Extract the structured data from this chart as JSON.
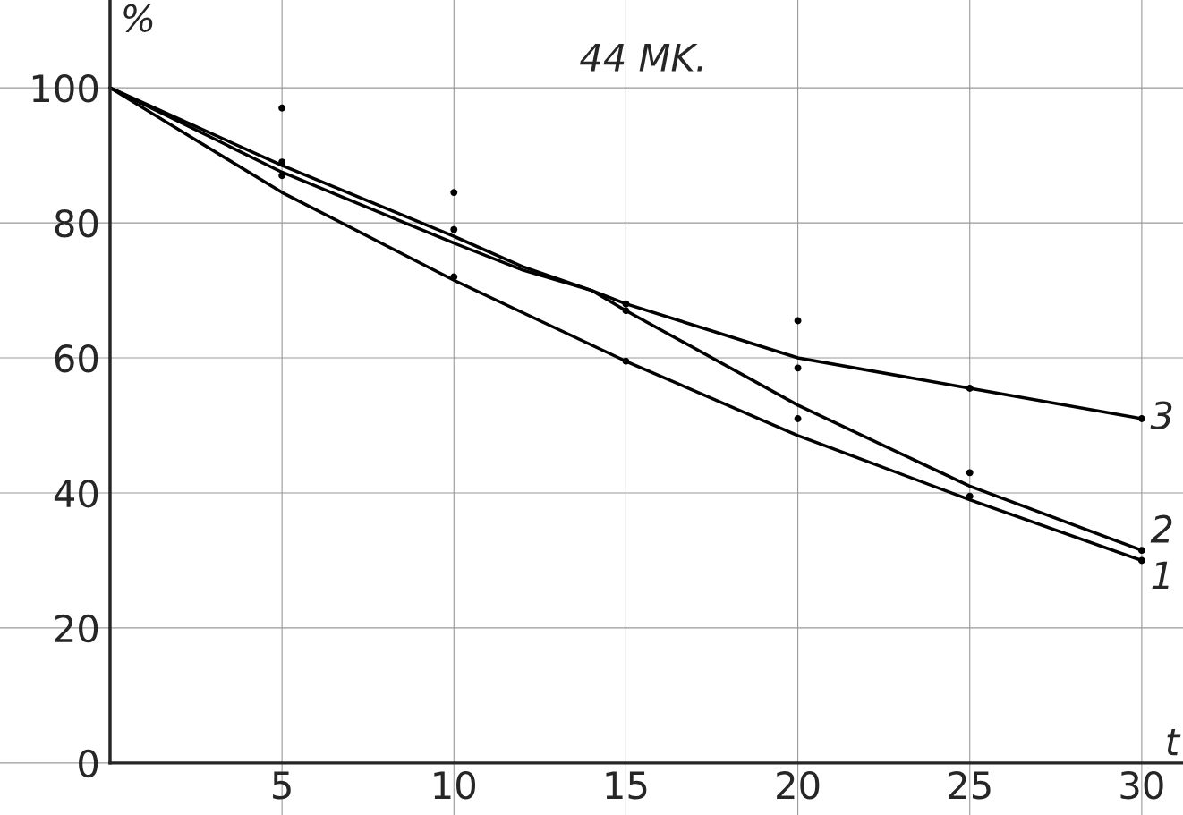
{
  "chart_data": {
    "type": "line",
    "title": "44 MK.",
    "xlabel": "t",
    "ylabel": "%",
    "x": [
      0,
      5,
      10,
      15,
      20,
      25,
      30
    ],
    "series": [
      {
        "name": "1",
        "color": "#000000",
        "values": [
          100,
          84.5,
          71.5,
          59.5,
          48.5,
          39,
          30
        ]
      },
      {
        "name": "2",
        "color": "#000000",
        "x": [
          0,
          5,
          10,
          12,
          14,
          15,
          20,
          25,
          30
        ],
        "values": [
          100,
          87.5,
          77,
          73,
          70,
          67,
          53,
          41,
          31.5
        ]
      },
      {
        "name": "3",
        "color": "#000000",
        "x": [
          0,
          5,
          10,
          12,
          14,
          15,
          20,
          25,
          30
        ],
        "values": [
          100,
          88.5,
          78,
          73.5,
          70,
          68,
          60,
          55.5,
          51
        ]
      },
      {
        "type": "scatter",
        "marker": "circle",
        "color": "#000000",
        "x": [
          5,
          5,
          5,
          10,
          10,
          10,
          15,
          15,
          15,
          20,
          20,
          20,
          25,
          25,
          25,
          30,
          30,
          30
        ],
        "values": [
          97,
          89,
          87,
          84.5,
          79,
          72,
          68,
          67,
          59.5,
          65.5,
          58.5,
          51,
          55.5,
          43,
          39.5,
          51,
          31.5,
          30
        ]
      }
    ],
    "xlim": [
      -3.2,
      31.2
    ],
    "ylim": [
      -7.7,
      113
    ],
    "xticks": [
      5,
      10,
      15,
      20,
      25,
      30
    ],
    "yticks": [
      0,
      20,
      40,
      60,
      80,
      100
    ],
    "grid": true,
    "legend": false,
    "marker": "none",
    "line_style": "solid"
  }
}
